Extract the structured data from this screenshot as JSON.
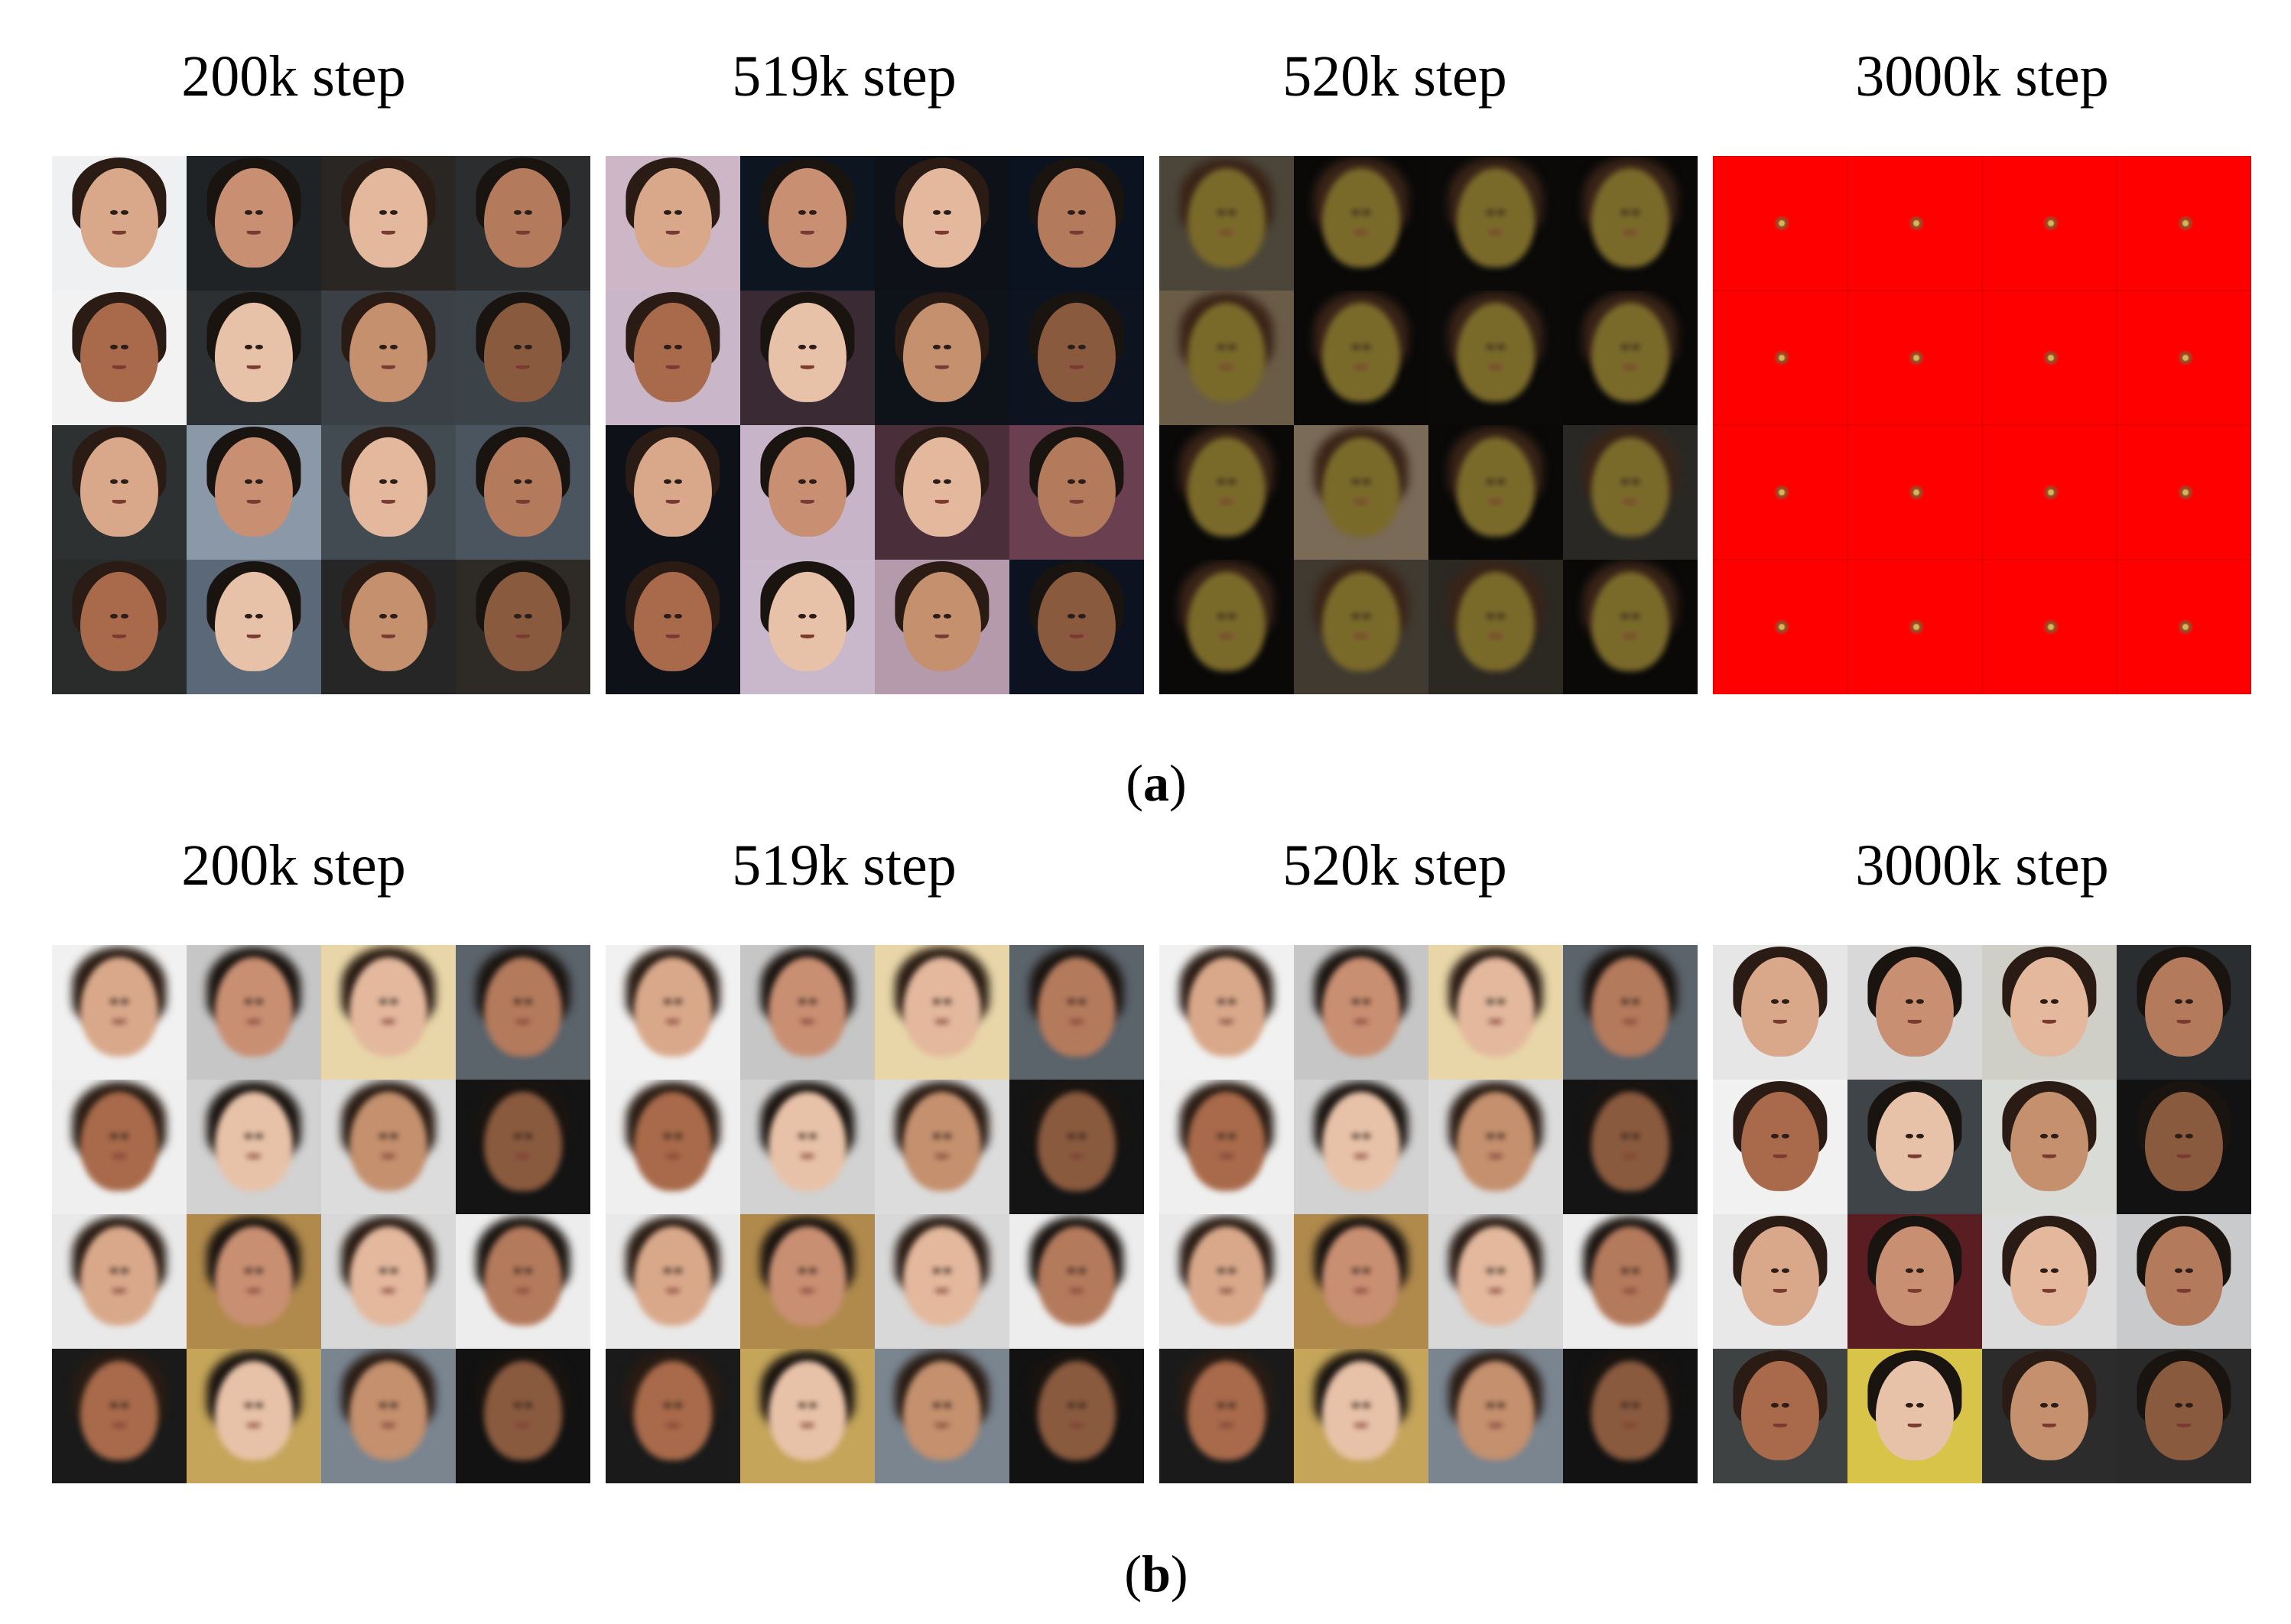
{
  "panel_a": {
    "label_open": "(",
    "label_letter": "a",
    "label_close": ")",
    "columns": [
      {
        "title": "200k step",
        "style": "sharp-faces"
      },
      {
        "title": "519k step",
        "style": "sharp-faces-pink"
      },
      {
        "title": "520k step",
        "style": "collapsed-dark"
      },
      {
        "title": "3000k step",
        "style": "collapsed-red"
      }
    ]
  },
  "panel_b": {
    "label_open": "(",
    "label_letter": "b",
    "label_close": ")",
    "columns": [
      {
        "title": "200k step",
        "style": "blurry-faces"
      },
      {
        "title": "519k step",
        "style": "blurry-faces"
      },
      {
        "title": "520k step",
        "style": "blurry-faces"
      },
      {
        "title": "3000k step",
        "style": "clear-faces"
      }
    ]
  },
  "colors": {
    "collapse_red": "#ff0000",
    "dark_bg": "#0b0a08"
  }
}
